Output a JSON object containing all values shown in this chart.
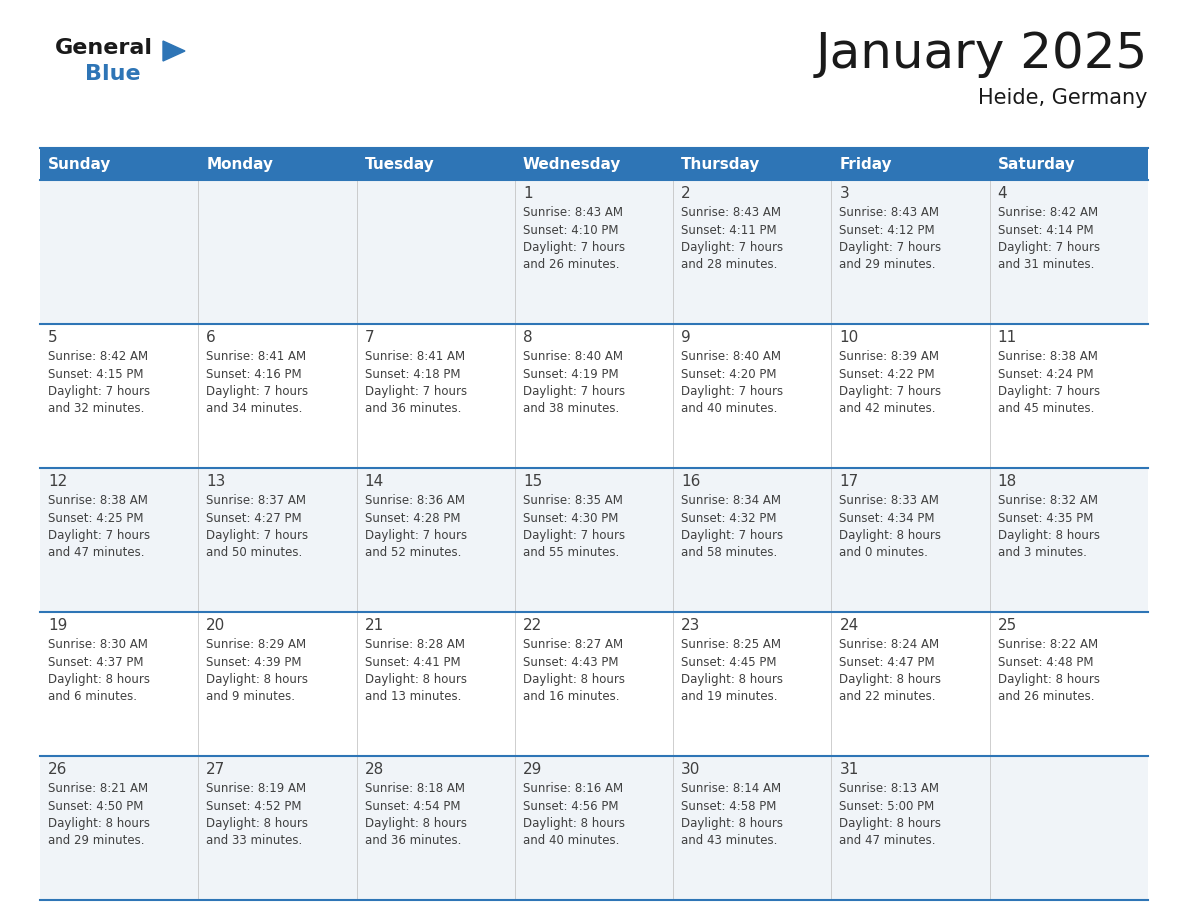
{
  "title": "January 2025",
  "subtitle": "Heide, Germany",
  "header_color": "#2E75B6",
  "header_text_color": "#FFFFFF",
  "cell_bg_odd": "#F0F4F8",
  "cell_bg_even": "#FFFFFF",
  "separator_color": "#2E75B6",
  "text_color": "#404040",
  "day_headers": [
    "Sunday",
    "Monday",
    "Tuesday",
    "Wednesday",
    "Thursday",
    "Friday",
    "Saturday"
  ],
  "weeks": [
    [
      {
        "day": "",
        "info": ""
      },
      {
        "day": "",
        "info": ""
      },
      {
        "day": "",
        "info": ""
      },
      {
        "day": "1",
        "info": "Sunrise: 8:43 AM\nSunset: 4:10 PM\nDaylight: 7 hours\nand 26 minutes."
      },
      {
        "day": "2",
        "info": "Sunrise: 8:43 AM\nSunset: 4:11 PM\nDaylight: 7 hours\nand 28 minutes."
      },
      {
        "day": "3",
        "info": "Sunrise: 8:43 AM\nSunset: 4:12 PM\nDaylight: 7 hours\nand 29 minutes."
      },
      {
        "day": "4",
        "info": "Sunrise: 8:42 AM\nSunset: 4:14 PM\nDaylight: 7 hours\nand 31 minutes."
      }
    ],
    [
      {
        "day": "5",
        "info": "Sunrise: 8:42 AM\nSunset: 4:15 PM\nDaylight: 7 hours\nand 32 minutes."
      },
      {
        "day": "6",
        "info": "Sunrise: 8:41 AM\nSunset: 4:16 PM\nDaylight: 7 hours\nand 34 minutes."
      },
      {
        "day": "7",
        "info": "Sunrise: 8:41 AM\nSunset: 4:18 PM\nDaylight: 7 hours\nand 36 minutes."
      },
      {
        "day": "8",
        "info": "Sunrise: 8:40 AM\nSunset: 4:19 PM\nDaylight: 7 hours\nand 38 minutes."
      },
      {
        "day": "9",
        "info": "Sunrise: 8:40 AM\nSunset: 4:20 PM\nDaylight: 7 hours\nand 40 minutes."
      },
      {
        "day": "10",
        "info": "Sunrise: 8:39 AM\nSunset: 4:22 PM\nDaylight: 7 hours\nand 42 minutes."
      },
      {
        "day": "11",
        "info": "Sunrise: 8:38 AM\nSunset: 4:24 PM\nDaylight: 7 hours\nand 45 minutes."
      }
    ],
    [
      {
        "day": "12",
        "info": "Sunrise: 8:38 AM\nSunset: 4:25 PM\nDaylight: 7 hours\nand 47 minutes."
      },
      {
        "day": "13",
        "info": "Sunrise: 8:37 AM\nSunset: 4:27 PM\nDaylight: 7 hours\nand 50 minutes."
      },
      {
        "day": "14",
        "info": "Sunrise: 8:36 AM\nSunset: 4:28 PM\nDaylight: 7 hours\nand 52 minutes."
      },
      {
        "day": "15",
        "info": "Sunrise: 8:35 AM\nSunset: 4:30 PM\nDaylight: 7 hours\nand 55 minutes."
      },
      {
        "day": "16",
        "info": "Sunrise: 8:34 AM\nSunset: 4:32 PM\nDaylight: 7 hours\nand 58 minutes."
      },
      {
        "day": "17",
        "info": "Sunrise: 8:33 AM\nSunset: 4:34 PM\nDaylight: 8 hours\nand 0 minutes."
      },
      {
        "day": "18",
        "info": "Sunrise: 8:32 AM\nSunset: 4:35 PM\nDaylight: 8 hours\nand 3 minutes."
      }
    ],
    [
      {
        "day": "19",
        "info": "Sunrise: 8:30 AM\nSunset: 4:37 PM\nDaylight: 8 hours\nand 6 minutes."
      },
      {
        "day": "20",
        "info": "Sunrise: 8:29 AM\nSunset: 4:39 PM\nDaylight: 8 hours\nand 9 minutes."
      },
      {
        "day": "21",
        "info": "Sunrise: 8:28 AM\nSunset: 4:41 PM\nDaylight: 8 hours\nand 13 minutes."
      },
      {
        "day": "22",
        "info": "Sunrise: 8:27 AM\nSunset: 4:43 PM\nDaylight: 8 hours\nand 16 minutes."
      },
      {
        "day": "23",
        "info": "Sunrise: 8:25 AM\nSunset: 4:45 PM\nDaylight: 8 hours\nand 19 minutes."
      },
      {
        "day": "24",
        "info": "Sunrise: 8:24 AM\nSunset: 4:47 PM\nDaylight: 8 hours\nand 22 minutes."
      },
      {
        "day": "25",
        "info": "Sunrise: 8:22 AM\nSunset: 4:48 PM\nDaylight: 8 hours\nand 26 minutes."
      }
    ],
    [
      {
        "day": "26",
        "info": "Sunrise: 8:21 AM\nSunset: 4:50 PM\nDaylight: 8 hours\nand 29 minutes."
      },
      {
        "day": "27",
        "info": "Sunrise: 8:19 AM\nSunset: 4:52 PM\nDaylight: 8 hours\nand 33 minutes."
      },
      {
        "day": "28",
        "info": "Sunrise: 8:18 AM\nSunset: 4:54 PM\nDaylight: 8 hours\nand 36 minutes."
      },
      {
        "day": "29",
        "info": "Sunrise: 8:16 AM\nSunset: 4:56 PM\nDaylight: 8 hours\nand 40 minutes."
      },
      {
        "day": "30",
        "info": "Sunrise: 8:14 AM\nSunset: 4:58 PM\nDaylight: 8 hours\nand 43 minutes."
      },
      {
        "day": "31",
        "info": "Sunrise: 8:13 AM\nSunset: 5:00 PM\nDaylight: 8 hours\nand 47 minutes."
      },
      {
        "day": "",
        "info": ""
      }
    ]
  ],
  "logo_general_color": "#1a1a1a",
  "logo_blue_color": "#2E75B6",
  "logo_triangle_color": "#2E75B6",
  "title_fontsize": 36,
  "subtitle_fontsize": 15,
  "header_fontsize": 11,
  "day_num_fontsize": 11,
  "cell_text_fontsize": 8.5
}
